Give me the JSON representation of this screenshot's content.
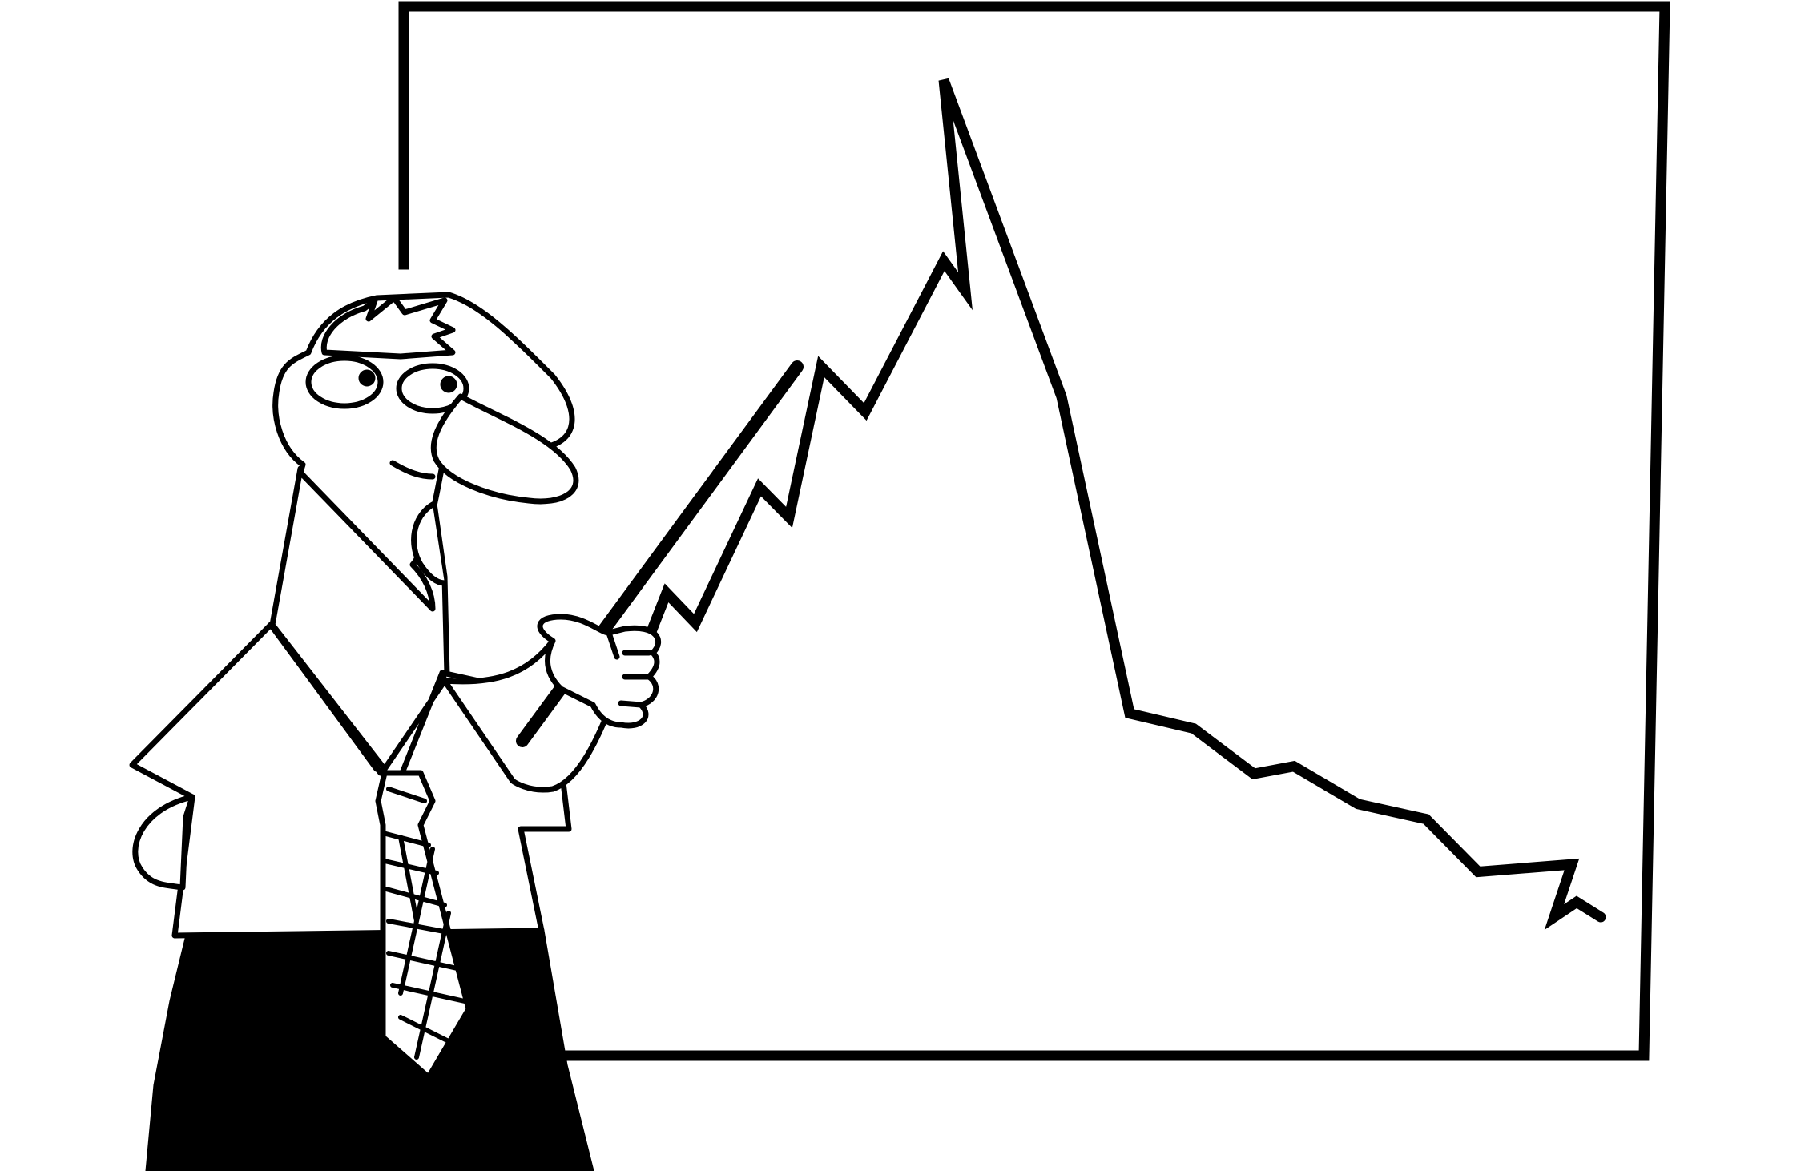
{
  "palette": {
    "ink": "#000000",
    "paper": "#ffffff"
  },
  "scene": {
    "subject": "cartoon-presenter",
    "board": "line-chart-board",
    "trend": "rise-then-decline",
    "chart_series_shape": [
      12,
      17,
      15,
      20,
      18,
      27,
      25,
      35,
      32,
      42,
      40,
      54,
      33,
      12,
      11,
      8,
      8.5,
      6,
      5,
      1.5,
      2,
      -1.5,
      -0.5,
      -1.5
    ]
  }
}
